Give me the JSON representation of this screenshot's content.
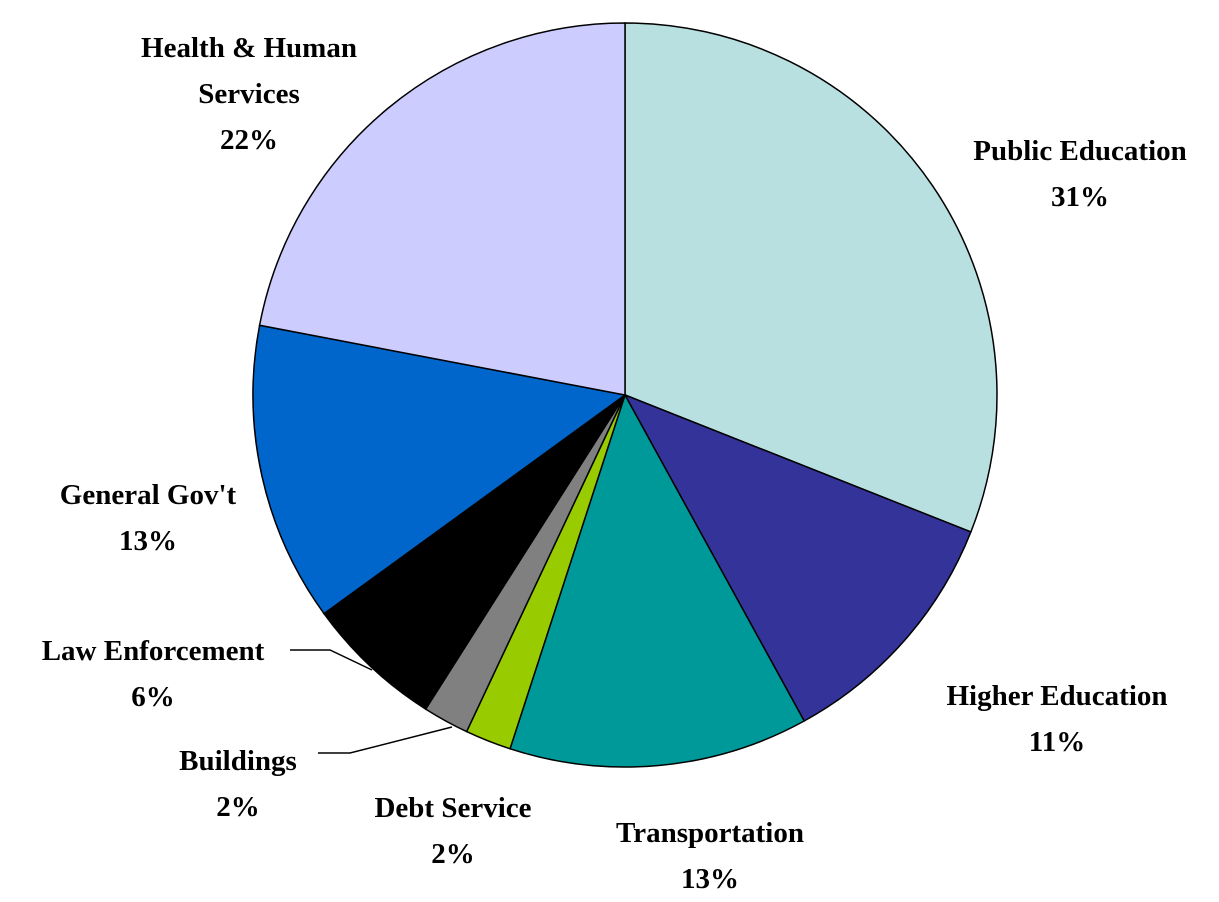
{
  "chart_data": {
    "type": "pie",
    "categories": [
      "Public Education",
      "Higher Education",
      "Transportation",
      "Debt Service",
      "Buildings",
      "Law Enforcement",
      "General Gov't",
      "Health & Human Services"
    ],
    "values": [
      31,
      11,
      13,
      2,
      2,
      6,
      13,
      22
    ],
    "value_labels": [
      "31%",
      "11%",
      "13%",
      "2%",
      "2%",
      "6%",
      "13%",
      "22%"
    ],
    "colors": [
      "#b8e0e0",
      "#333399",
      "#009999",
      "#99cc00",
      "#808080",
      "#000000",
      "#0066cc",
      "#ccccff"
    ]
  }
}
